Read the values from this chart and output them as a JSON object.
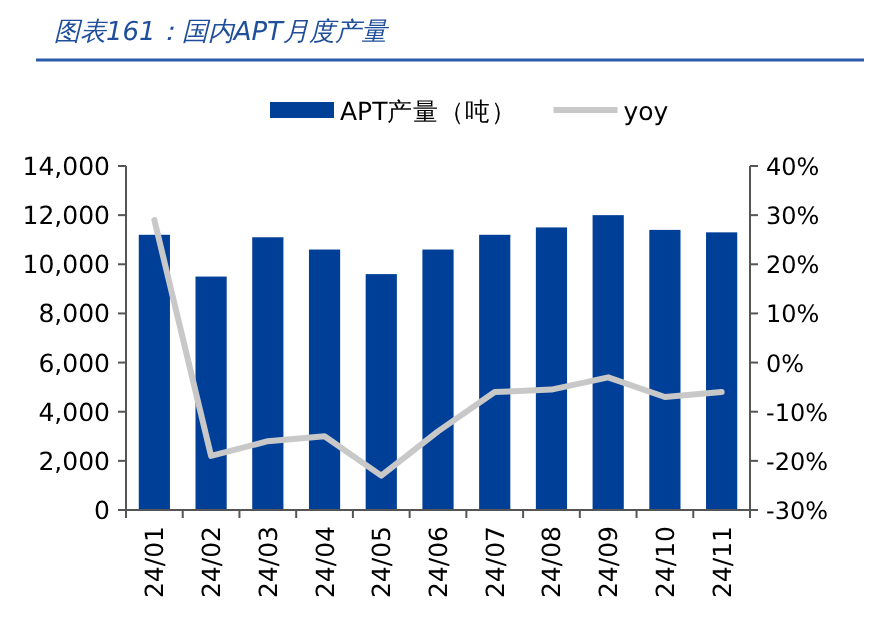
{
  "chart_data": {
    "type": "bar",
    "title": "图表161：国内APT月度产量",
    "categories": [
      "24/01",
      "24/02",
      "24/03",
      "24/04",
      "24/05",
      "24/06",
      "24/07",
      "24/08",
      "24/09",
      "24/10",
      "24/11"
    ],
    "series": [
      {
        "name": "APT产量（吨）",
        "color": "#003f98",
        "values": [
          11200,
          9500,
          11100,
          10600,
          9600,
          10600,
          11200,
          11500,
          12000,
          11400,
          11300
        ]
      },
      {
        "name": "yoy",
        "type": "line",
        "axis": "y2",
        "color": "#c8c8c8",
        "values": [
          29,
          -19,
          -16,
          -15,
          -23,
          -14,
          -6,
          -5.5,
          -3,
          -7,
          -6
        ]
      }
    ],
    "ylim": [
      0,
      14000
    ],
    "yticks": [
      {
        "value": 0,
        "label": "0"
      },
      {
        "value": 2000,
        "label": "2,000"
      },
      {
        "value": 4000,
        "label": "4,000"
      },
      {
        "value": 6000,
        "label": "6,000"
      },
      {
        "value": 8000,
        "label": "8,000"
      },
      {
        "value": 10000,
        "label": "10,000"
      },
      {
        "value": 12000,
        "label": "12,000"
      },
      {
        "value": 14000,
        "label": "14,000"
      }
    ],
    "y2lim": [
      -30,
      40
    ],
    "y2ticks": [
      {
        "value": -30,
        "label": "-30%"
      },
      {
        "value": -20,
        "label": "-20%"
      },
      {
        "value": -10,
        "label": "-10%"
      },
      {
        "value": 0,
        "label": "0%"
      },
      {
        "value": 10,
        "label": "10%"
      },
      {
        "value": 20,
        "label": "20%"
      },
      {
        "value": 30,
        "label": "30%"
      },
      {
        "value": 40,
        "label": "40%"
      }
    ],
    "legend": "top",
    "grid": false
  }
}
